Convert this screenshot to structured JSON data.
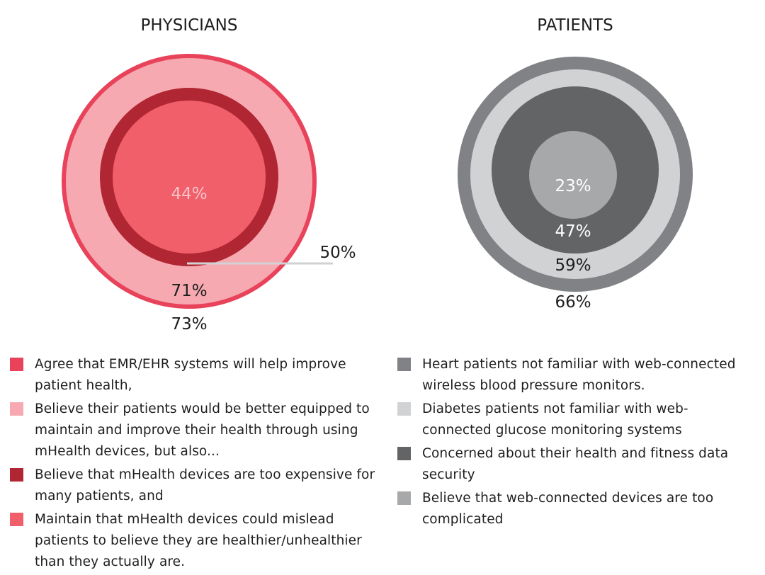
{
  "chart_data": [
    {
      "type": "nested-circle",
      "title": "PHYSICIANS",
      "series": [
        {
          "label": "73%",
          "value": 73,
          "color": "#e8435a",
          "description": "Agree that EMR/EHR systems will help improve patient health,"
        },
        {
          "label": "71%",
          "value": 71,
          "color": "#f6a9b1",
          "description": "Believe their patients would be better equipped to maintain and improve their health through using mHealth devices, but also..."
        },
        {
          "label": "50%",
          "value": 50,
          "color": "#b02632",
          "description": "Believe that mHealth devices are too expensive for many patients, and"
        },
        {
          "label": "44%",
          "value": 44,
          "color": "#f05f6a",
          "description": "Maintain that mHealth devices could mislead patients to believe they are healthier/unhealthier than they actually are."
        }
      ]
    },
    {
      "type": "nested-circle",
      "title": "PATIENTS",
      "series": [
        {
          "label": "66%",
          "value": 66,
          "color": "#808285",
          "description": "Heart patients not familiar with web-connected wireless blood pressure monitors."
        },
        {
          "label": "59%",
          "value": 59,
          "color": "#d1d2d3",
          "description": "Diabetes patients not familiar with web-connected glucose monitoring systems"
        },
        {
          "label": "47%",
          "value": 47,
          "color": "#636466",
          "description": "Concerned about their health and fitness data security"
        },
        {
          "label": "23%",
          "value": 23,
          "color": "#a7a8aa",
          "description": "Believe that web-connected devices are too complicated"
        }
      ]
    }
  ]
}
